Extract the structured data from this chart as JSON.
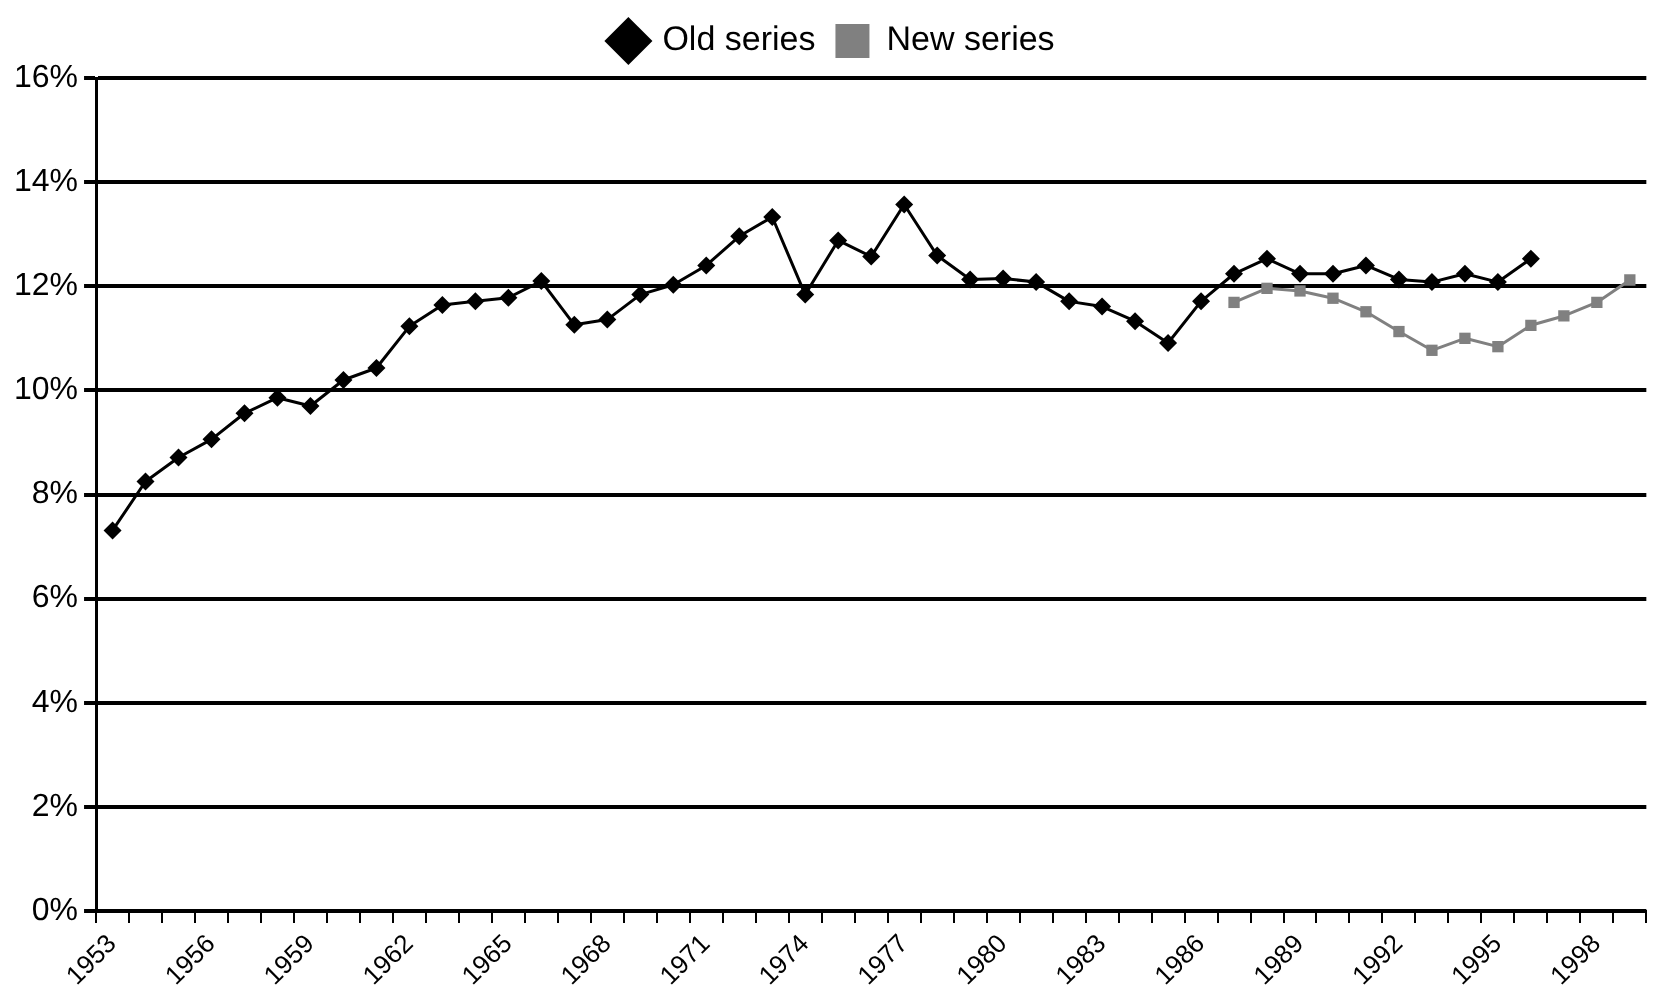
{
  "chart_data": {
    "type": "line",
    "categories": [
      "1953",
      null,
      null,
      "1956",
      null,
      null,
      "1959",
      null,
      null,
      "1962",
      null,
      null,
      "1965",
      null,
      null,
      "1968",
      null,
      null,
      "1971",
      null,
      null,
      "1974",
      null,
      null,
      "1977",
      null,
      null,
      "1980",
      null,
      null,
      "1983",
      null,
      null,
      "1986",
      null,
      null,
      "1989",
      null,
      null,
      "1992",
      null,
      null,
      "1995",
      null,
      null,
      "1998",
      null
    ],
    "series": [
      {
        "name": "Old series",
        "color": "#000000",
        "marker": "diamond",
        "values": [
          7.31,
          8.25,
          8.71,
          9.06,
          9.56,
          9.86,
          9.7,
          10.2,
          10.43,
          11.23,
          11.64,
          11.71,
          11.78,
          12.1,
          11.26,
          11.36,
          11.84,
          12.03,
          12.4,
          12.96,
          13.33,
          11.84,
          12.88,
          12.57,
          13.57,
          12.59,
          12.13,
          12.15,
          12.08,
          11.71,
          11.61,
          11.33,
          10.91,
          11.71,
          12.24,
          12.53,
          12.24,
          12.24,
          12.4,
          12.13,
          12.08,
          12.24,
          12.08,
          12.53,
          null,
          null,
          null
        ]
      },
      {
        "name": "New series",
        "color": "#808080",
        "marker": "square",
        "values": [
          null,
          null,
          null,
          null,
          null,
          null,
          null,
          null,
          null,
          null,
          null,
          null,
          null,
          null,
          null,
          null,
          null,
          null,
          null,
          null,
          null,
          null,
          null,
          null,
          null,
          null,
          null,
          null,
          null,
          null,
          null,
          null,
          null,
          null,
          11.69,
          11.96,
          11.91,
          11.77,
          11.51,
          11.13,
          10.77,
          11.0,
          10.84,
          11.25,
          11.43,
          11.69,
          12.12
        ]
      }
    ],
    "ylim": [
      0,
      16
    ],
    "yticks": [
      {
        "value": 0,
        "label": "0%"
      },
      {
        "value": 2,
        "label": "2%"
      },
      {
        "value": 4,
        "label": "4%"
      },
      {
        "value": 6,
        "label": "6%"
      },
      {
        "value": 8,
        "label": "8%"
      },
      {
        "value": 10,
        "label": "10%"
      },
      {
        "value": 12,
        "label": "12%"
      },
      {
        "value": 14,
        "label": "14%"
      },
      {
        "value": 16,
        "label": "16%"
      }
    ],
    "grid": "y",
    "legend": "top",
    "line_style": "solid"
  }
}
